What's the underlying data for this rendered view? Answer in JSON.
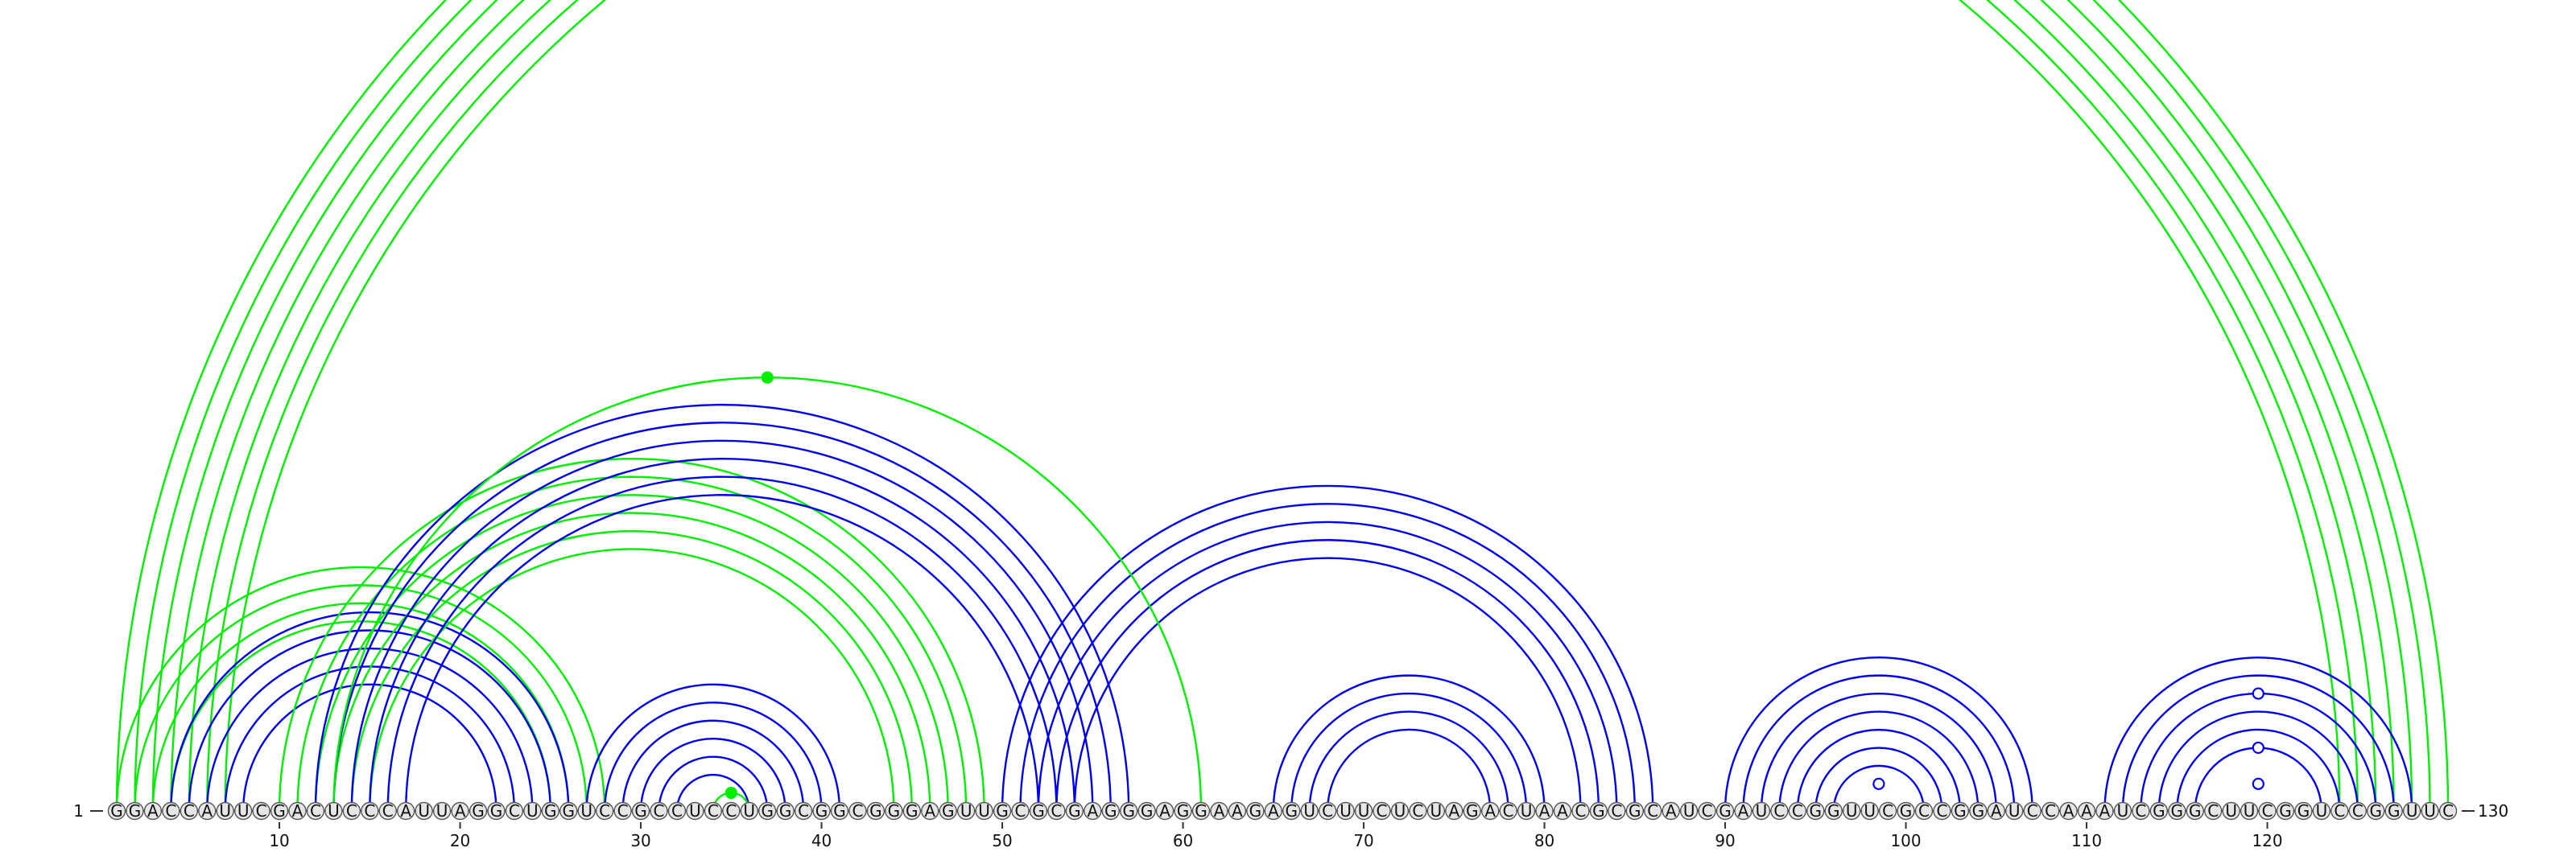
{
  "sequence": "GGACCAUUCGACUCCCAUUAGGCUGGUCCGCCUCCUGGCGGCGGGAGUUGCGCGAGGGAGGAAGAGUCUUCUCUAGACUAACGCGCAUCGAUCCGGUUCGCCGGAUCCAAAUCGGGCUUCGGUCCGGUUC",
  "start_label": "1",
  "end_label": "130",
  "ticks": [
    {
      "pos": 10,
      "label": "10"
    },
    {
      "pos": 20,
      "label": "20"
    },
    {
      "pos": 30,
      "label": "30"
    },
    {
      "pos": 40,
      "label": "40"
    },
    {
      "pos": 50,
      "label": "50"
    },
    {
      "pos": 60,
      "label": "60"
    },
    {
      "pos": 70,
      "label": "70"
    },
    {
      "pos": 80,
      "label": "80"
    },
    {
      "pos": 90,
      "label": "90"
    },
    {
      "pos": 100,
      "label": "100"
    },
    {
      "pos": 110,
      "label": "110"
    },
    {
      "pos": 120,
      "label": "120"
    }
  ],
  "colors": {
    "green": "#00ee00",
    "blue": "#0000ee",
    "node_fill": "#e6e6e6",
    "node_stroke": "#555555"
  },
  "arc_groups": [
    {
      "name": "long-range-helix",
      "color": "green",
      "i": 1,
      "j": 130,
      "count": 7
    },
    {
      "name": "helix-1-28",
      "color": "green",
      "i": 1,
      "j": 28,
      "count": 4
    },
    {
      "name": "helix-4-26",
      "color": "blue",
      "i": 4,
      "j": 26,
      "count": 5
    },
    {
      "name": "helix-10-49",
      "color": "green",
      "i": 10,
      "j": 49,
      "count": 6
    },
    {
      "name": "helix-12-57",
      "color": "blue",
      "i": 12,
      "j": 57,
      "count": 6
    },
    {
      "name": "helix-27-41",
      "color": "blue",
      "i": 27,
      "j": 41,
      "count": 6
    },
    {
      "name": "helix-50-86",
      "color": "blue",
      "i": 50,
      "j": 86,
      "count": 5
    },
    {
      "name": "helix-65-80",
      "color": "blue",
      "i": 65,
      "j": 80,
      "count": 4
    },
    {
      "name": "helix-90-107",
      "color": "blue",
      "i": 90,
      "j": 107,
      "count": 7
    },
    {
      "name": "helix-111-128",
      "color": "blue",
      "i": 111,
      "j": 128,
      "count": 6
    }
  ],
  "single_arcs": [
    {
      "i": 13,
      "j": 61,
      "color": "green"
    },
    {
      "i": 34,
      "j": 36,
      "color": "green"
    }
  ],
  "markers": [
    {
      "arc_i": 13,
      "arc_j": 61,
      "style": "filled",
      "color": "green"
    },
    {
      "arc_i": 34,
      "arc_j": 36,
      "style": "filled",
      "color": "green"
    },
    {
      "arc_i": 97,
      "arc_j": 100,
      "style": "open",
      "color": "blue"
    },
    {
      "arc_i": 116,
      "arc_j": 123,
      "style": "open",
      "color": "blue"
    },
    {
      "arc_i": 118,
      "arc_j": 121,
      "style": "open",
      "color": "blue"
    },
    {
      "arc_i": 113,
      "arc_j": 126,
      "style": "open",
      "color": "blue"
    }
  ]
}
